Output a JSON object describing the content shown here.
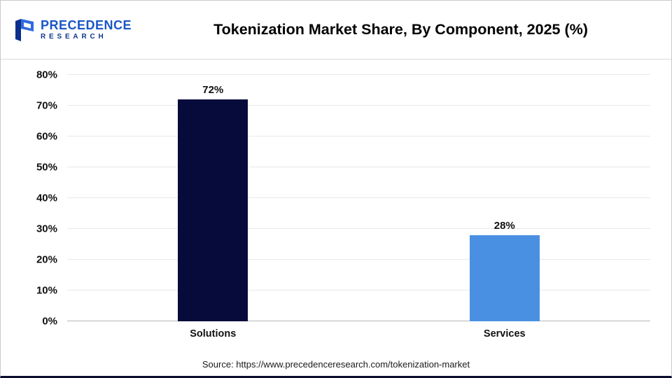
{
  "header": {
    "title": "Tokenization Market Share, By Component, 2025 (%)",
    "logo": {
      "line1": "PRECEDENCE",
      "line2": "RESEARCH"
    }
  },
  "chart_data": {
    "type": "bar",
    "title": "Tokenization Market Share, By Component, 2025 (%)",
    "categories": [
      "Solutions",
      "Services"
    ],
    "values": [
      72,
      28
    ],
    "value_labels": [
      "72%",
      "28%"
    ],
    "ylim": [
      0,
      80
    ],
    "ytick_step": 10,
    "ytick_labels": [
      "0%",
      "10%",
      "20%",
      "30%",
      "40%",
      "50%",
      "60%",
      "70%",
      "80%"
    ],
    "bar_colors": [
      "#070b3b",
      "#4a90e2"
    ],
    "grid": true,
    "legend": "none"
  },
  "footer": {
    "source": "Source: https://www.precedenceresearch.com/tokenization-market"
  }
}
